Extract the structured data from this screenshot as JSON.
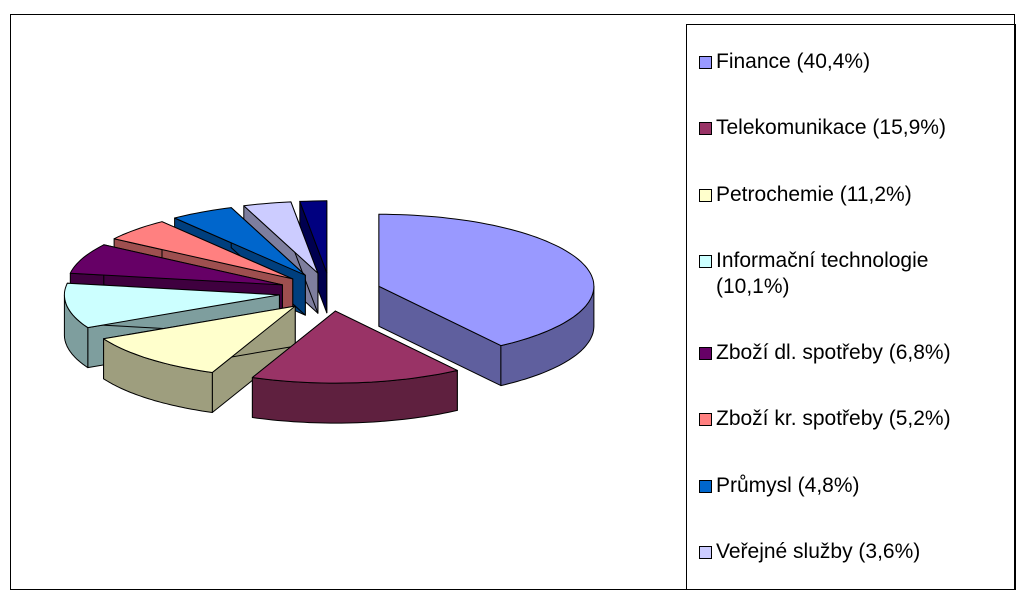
{
  "chart_data": {
    "type": "pie",
    "categories": [
      "Finance (40,4%)",
      "Telekomunikace (15,9%)",
      "Petrochemie (11,2%)",
      "Informační technologie (10,1%)",
      "Zboží dl. spotřeby (6,8%)",
      "Zboží kr. spotřeby (5,2%)",
      "Průmysl (4,8%)",
      "Veřejné služby (3,6%)",
      null
    ],
    "values": [
      40.4,
      15.9,
      11.2,
      10.1,
      6.8,
      5.2,
      4.8,
      3.6,
      2.0
    ],
    "colors": [
      "#9999ff",
      "#993366",
      "#ffffcc",
      "#ccffff",
      "#660066",
      "#ff8080",
      "#0066cc",
      "#ccccff",
      "#000080"
    ],
    "legend": "right"
  }
}
